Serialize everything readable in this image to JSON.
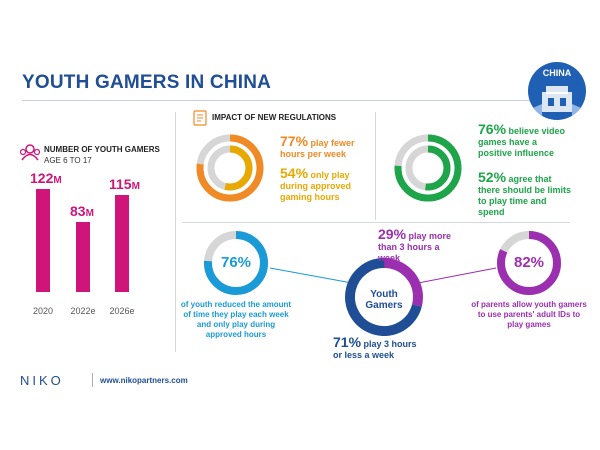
{
  "title": "YOUTH GAMERS IN CHINA",
  "badge": {
    "label": "CHINA"
  },
  "gamers": {
    "heading": "NUMBER OF YOUTH GAMERS",
    "subheading": "AGE 6 TO 17"
  },
  "regulations": {
    "heading": "IMPACT OF NEW REGULATIONS"
  },
  "stats": {
    "s77": {
      "pct": "77%",
      "text": " play fewer hours per week",
      "color": "#f08a24"
    },
    "s54": {
      "pct": "54%",
      "text": " only play during approved gaming hours",
      "color": "#e8a800"
    },
    "s76b": {
      "pct": "76%",
      "text": " believe video games have a positive influence",
      "color": "#1ea54a"
    },
    "s52": {
      "pct": "52%",
      "text": " agree that there should be limits to play time and spend",
      "color": "#1ea54a"
    },
    "s29": {
      "pct": "29%",
      "text": " play more than 3 hours a week",
      "color": "#9b2fb0"
    },
    "s71": {
      "pct": "71%",
      "text": " play 3 hours or less a week",
      "color": "#1f4e96"
    }
  },
  "reduced": {
    "pct": "76%",
    "text": "of youth reduced the amount of time they play each week and only play during approved hours",
    "color": "#1a9bd7"
  },
  "parents": {
    "pct": "82%",
    "text": "of parents allow youth gamers to use parents' adult IDs to play games",
    "color": "#9b2fb0"
  },
  "center_label": "Youth Gamers",
  "footer": {
    "logo": "NIKO",
    "url": "www.nikopartners.com"
  },
  "chart_data": {
    "type": "bar",
    "categories": [
      "2020",
      "2022e",
      "2026e"
    ],
    "values": [
      122,
      83,
      115
    ],
    "unit": "M",
    "title": "NUMBER OF YOUTH GAMERS",
    "subtitle": "AGE 6 TO 17",
    "xlabel": "",
    "ylabel": "",
    "ylim": [
      0,
      122
    ],
    "color": "#d0157a",
    "grid": false
  },
  "donuts": {
    "regulations": [
      {
        "value": 77,
        "color": "#f08a24"
      },
      {
        "value": 54,
        "color": "#e8a800"
      }
    ],
    "attitudes": [
      {
        "value": 76,
        "color": "#1ea54a"
      },
      {
        "value": 52,
        "color": "#1ea54a"
      }
    ],
    "reduced": {
      "value": 76,
      "color": "#1a9bd7"
    },
    "playtime": [
      {
        "value": 29,
        "color": "#9b2fb0"
      },
      {
        "value": 71,
        "color": "#1f4e96"
      }
    ],
    "parents": {
      "value": 82,
      "color": "#9b2fb0"
    }
  }
}
